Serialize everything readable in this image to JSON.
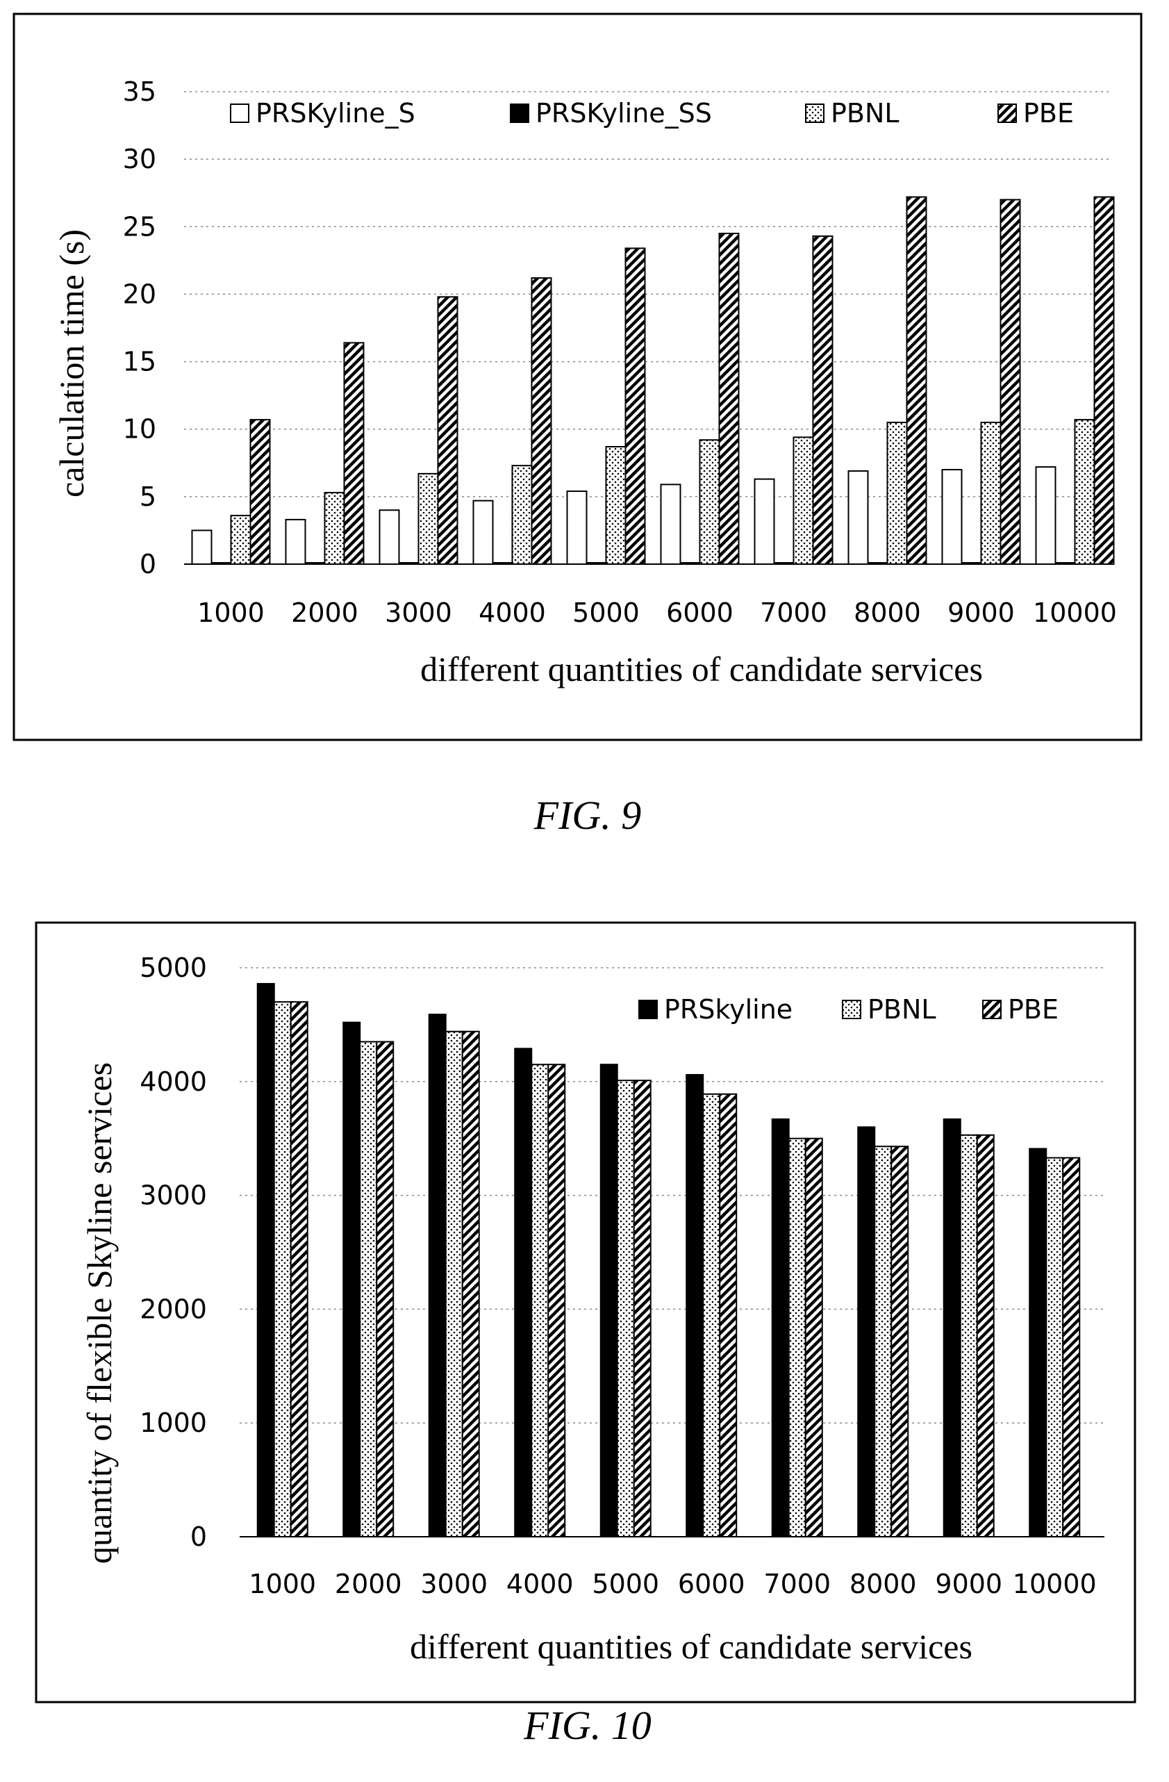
{
  "figures": [
    {
      "caption": "FIG. 9",
      "chart_data": {
        "type": "bar",
        "categories": [
          "1000",
          "2000",
          "3000",
          "4000",
          "5000",
          "6000",
          "7000",
          "8000",
          "9000",
          "10000"
        ],
        "series": [
          {
            "name": "PRSKyline_S",
            "pattern": "white",
            "values": [
              2.5,
              3.3,
              4.0,
              4.7,
              5.4,
              5.9,
              6.3,
              6.9,
              7.0,
              7.2
            ]
          },
          {
            "name": "PRSKyline_SS",
            "pattern": "black",
            "values": [
              0.1,
              0.1,
              0.1,
              0.1,
              0.1,
              0.1,
              0.1,
              0.1,
              0.1,
              0.1
            ]
          },
          {
            "name": "PBNL",
            "pattern": "dots",
            "values": [
              3.6,
              5.3,
              6.7,
              7.3,
              8.7,
              9.2,
              9.4,
              10.5,
              10.5,
              10.7
            ]
          },
          {
            "name": "PBE",
            "pattern": "hatch",
            "values": [
              10.7,
              16.4,
              19.8,
              21.2,
              23.4,
              24.5,
              24.3,
              27.2,
              27.0,
              27.2
            ]
          }
        ],
        "yticks": [
          "0",
          "5",
          "10",
          "15",
          "20",
          "25",
          "30",
          "35"
        ],
        "ylim": [
          0,
          35
        ],
        "xlabel": "different quantities of candidate services",
        "ylabel": "calculation time (s)",
        "grid": true,
        "legend_position": "top"
      }
    },
    {
      "caption": "FIG. 10",
      "chart_data": {
        "type": "bar",
        "categories": [
          "1000",
          "2000",
          "3000",
          "4000",
          "5000",
          "6000",
          "7000",
          "8000",
          "9000",
          "10000"
        ],
        "series": [
          {
            "name": "PRSkyline",
            "pattern": "black",
            "values": [
              4860,
              4520,
              4590,
              4290,
              4150,
              4060,
              3670,
              3600,
              3670,
              3410
            ]
          },
          {
            "name": "PBNL",
            "pattern": "dots",
            "values": [
              4700,
              4350,
              4440,
              4150,
              4010,
              3890,
              3500,
              3430,
              3530,
              3330
            ]
          },
          {
            "name": "PBE",
            "pattern": "hatch",
            "values": [
              4700,
              4350,
              4440,
              4150,
              4010,
              3890,
              3500,
              3430,
              3530,
              3330
            ]
          }
        ],
        "yticks": [
          "0",
          "1000",
          "2000",
          "3000",
          "4000",
          "5000"
        ],
        "ylim": [
          0,
          5000
        ],
        "xlabel": "different quantities of candidate services",
        "ylabel": "quantity of flexible Skyline services",
        "grid": true,
        "legend_position": "top-right"
      }
    }
  ]
}
